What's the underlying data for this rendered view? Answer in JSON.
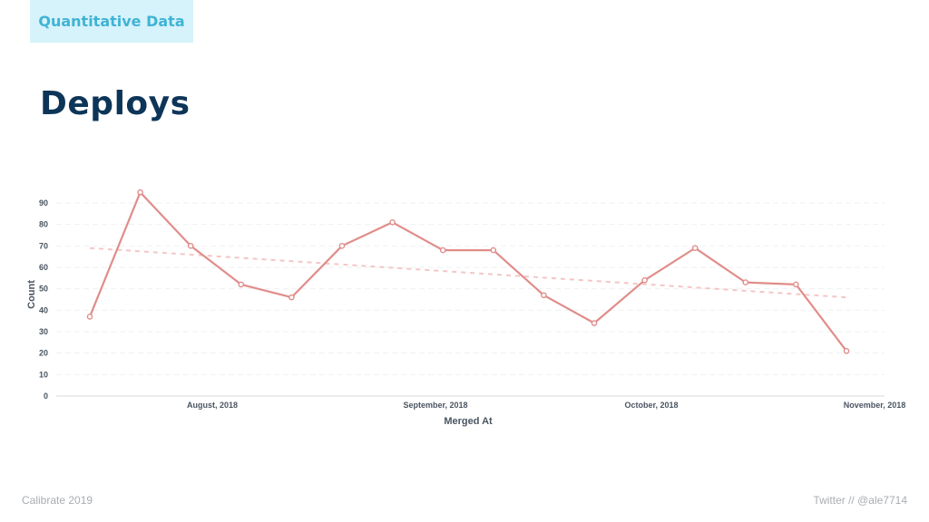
{
  "header": {
    "tag": "Quantitative Data",
    "title": "Deploys"
  },
  "footer": {
    "left": "Calibrate 2019",
    "right": "Twitter // @ale7714"
  },
  "colors": {
    "line": "#e08d8a",
    "trend": "#f4c6c6",
    "grid": "#eef0f2",
    "title": "#0d3558",
    "tag_bg": "#d6f2fa",
    "tag_text": "#3fb3d6"
  },
  "chart_data": {
    "type": "line",
    "xlabel": "Merged At",
    "ylabel": "Count",
    "ylim": [
      0,
      95
    ],
    "yticks": [
      0,
      10,
      20,
      30,
      40,
      50,
      60,
      70,
      80,
      90
    ],
    "xtick_labels": [
      "August, 2018",
      "September, 2018",
      "October, 2018",
      "November, 2018"
    ],
    "grid": true,
    "series": [
      {
        "values": [
          37,
          95,
          70,
          52,
          46,
          70,
          81,
          68,
          68,
          47,
          34,
          54,
          69,
          53,
          52,
          21
        ]
      }
    ],
    "trendline": {
      "start": 69,
      "end": 46
    }
  }
}
